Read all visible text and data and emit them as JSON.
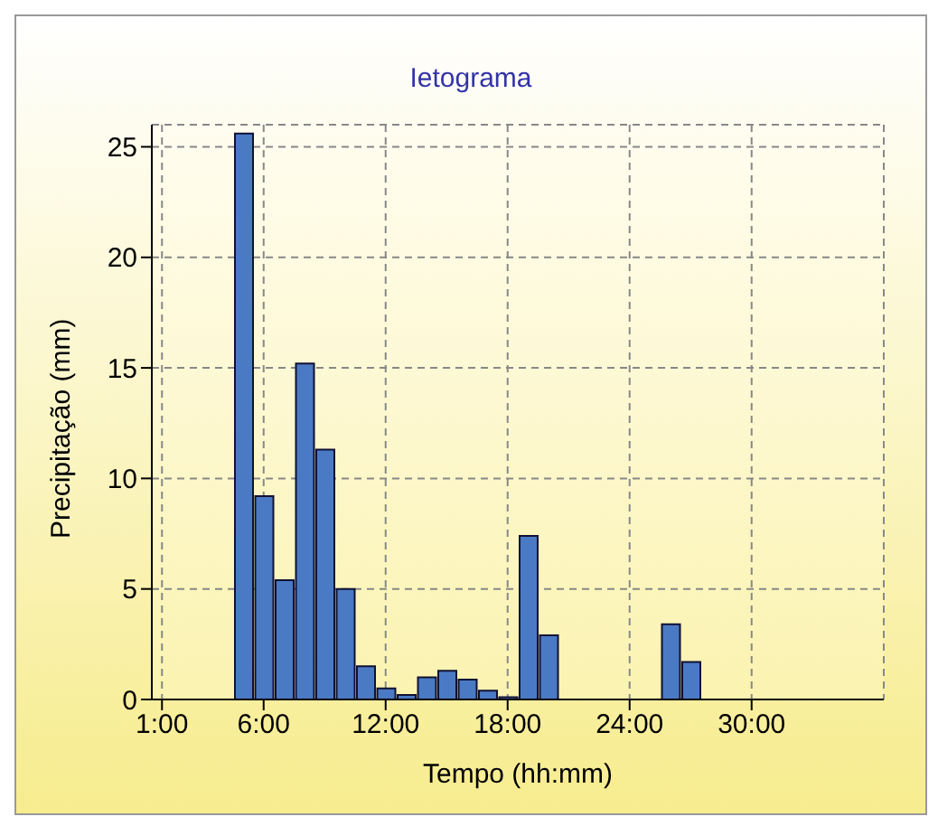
{
  "chart_data": {
    "type": "bar",
    "title": "Ietograma",
    "xlabel": "Tempo (hh:mm)",
    "ylabel": "Precipitação (mm)",
    "x": [
      1,
      2,
      3,
      4,
      5,
      6,
      7,
      8,
      9,
      10,
      11,
      12,
      13,
      14,
      15,
      16,
      17,
      18,
      19,
      20,
      21,
      22,
      23,
      24,
      25,
      26,
      27,
      28,
      29,
      30,
      31,
      32,
      33,
      34,
      35,
      36
    ],
    "values": [
      0,
      0,
      0,
      0,
      25.6,
      9.2,
      5.4,
      15.2,
      11.3,
      5.0,
      1.5,
      0.5,
      0.2,
      1.0,
      1.3,
      0.9,
      0.4,
      0.1,
      7.4,
      2.9,
      0,
      0,
      0,
      0,
      0,
      3.4,
      1.7,
      0,
      0,
      0,
      0,
      0,
      0,
      0,
      0,
      0
    ],
    "color": "#4a7ac4",
    "xlim": [
      0.5,
      36.5
    ],
    "xticks": [
      {
        "value": 1,
        "label": "1:00"
      },
      {
        "value": 6,
        "label": "6:00"
      },
      {
        "value": 12,
        "label": "12:00"
      },
      {
        "value": 18,
        "label": "18:00"
      },
      {
        "value": 24,
        "label": "24:00"
      },
      {
        "value": 30,
        "label": "30:00"
      }
    ],
    "ylim": [
      0,
      26
    ],
    "yticks": [
      0,
      5,
      10,
      15,
      20,
      25
    ],
    "grid": true
  }
}
